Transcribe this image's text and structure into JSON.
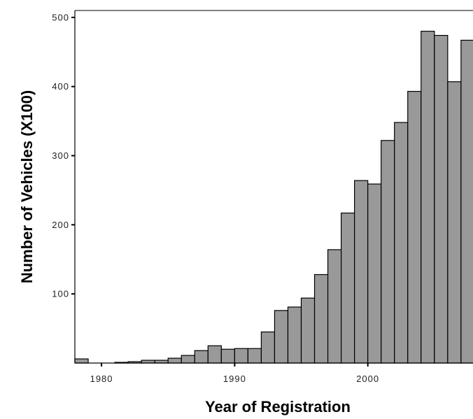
{
  "chart_data": {
    "type": "bar",
    "title": "",
    "xlabel": "Year of Registration",
    "ylabel": "Number of Vehicles (X100)",
    "bar_color": "#999999",
    "bar_stroke": "#000000",
    "grid": false,
    "legend": "none",
    "xlim": [
      1978,
      2007.9
    ],
    "ylim": [
      0,
      510
    ],
    "x_ticks": [
      1980,
      1990,
      2000
    ],
    "y_ticks": [
      100,
      200,
      300,
      400,
      500
    ],
    "x_tick_labels": [
      "1980",
      "1990",
      "2000"
    ],
    "y_tick_labels": [
      "100",
      "200",
      "300",
      "400",
      "500"
    ],
    "bin_width": 1,
    "x": [
      1978,
      1979,
      1980,
      1981,
      1982,
      1983,
      1984,
      1985,
      1986,
      1987,
      1988,
      1989,
      1990,
      1991,
      1992,
      1993,
      1994,
      1995,
      1996,
      1997,
      1998,
      1999,
      2000,
      2001,
      2002,
      2003,
      2004,
      2005,
      2006,
      2007
    ],
    "values": [
      6,
      0,
      0,
      1,
      2,
      4,
      4,
      7,
      11,
      18,
      25,
      20,
      21,
      21,
      45,
      76,
      81,
      94,
      128,
      164,
      217,
      264,
      259,
      322,
      348,
      393,
      480,
      474,
      407,
      467
    ]
  }
}
